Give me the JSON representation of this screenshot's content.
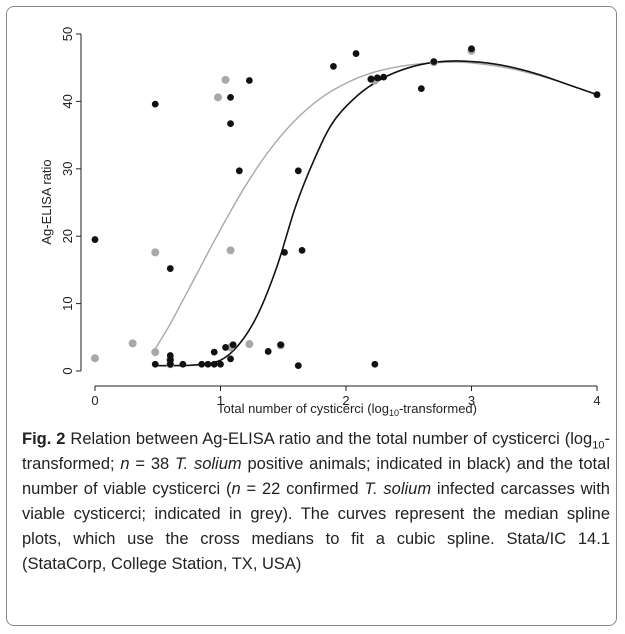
{
  "chart_data": {
    "type": "scatter",
    "xlabel_parts": [
      "Total number of cysticerci (log",
      "10",
      "-transformed)"
    ],
    "ylabel": "Ag-ELISA ratio",
    "xlim": [
      0,
      4
    ],
    "ylim": [
      0,
      50
    ],
    "x_ticks": [
      0,
      1,
      2,
      3,
      4
    ],
    "y_ticks": [
      0,
      10,
      20,
      30,
      40,
      50
    ],
    "grid": false,
    "series": [
      {
        "color": "#111111",
        "points": [
          [
            0.0,
            19.5
          ],
          [
            0.48,
            39.6
          ],
          [
            0.48,
            1.0
          ],
          [
            0.6,
            15.2
          ],
          [
            0.6,
            2.3
          ],
          [
            0.6,
            1.6
          ],
          [
            0.6,
            1.0
          ],
          [
            0.7,
            1.0
          ],
          [
            0.85,
            1.0
          ],
          [
            0.9,
            1.0
          ],
          [
            0.95,
            2.8
          ],
          [
            0.95,
            1.0
          ],
          [
            1.0,
            1.0
          ],
          [
            1.04,
            3.5
          ],
          [
            1.08,
            40.6
          ],
          [
            1.08,
            36.7
          ],
          [
            1.08,
            1.8
          ],
          [
            1.1,
            3.9
          ],
          [
            1.15,
            29.7
          ],
          [
            1.23,
            43.1
          ],
          [
            1.38,
            2.9
          ],
          [
            1.48,
            3.9
          ],
          [
            1.51,
            17.6
          ],
          [
            1.62,
            29.7
          ],
          [
            1.62,
            0.8
          ],
          [
            1.65,
            17.9
          ],
          [
            1.9,
            45.2
          ],
          [
            2.08,
            47.1
          ],
          [
            2.2,
            43.3
          ],
          [
            2.23,
            1.0
          ],
          [
            2.25,
            43.5
          ],
          [
            2.3,
            43.6
          ],
          [
            2.6,
            41.9
          ],
          [
            2.7,
            45.9
          ],
          [
            3.0,
            47.8
          ],
          [
            4.0,
            41.0
          ]
        ],
        "curve": [
          [
            0.48,
            0.8
          ],
          [
            0.6,
            0.8
          ],
          [
            0.8,
            0.9
          ],
          [
            1.0,
            1.6
          ],
          [
            1.15,
            4.0
          ],
          [
            1.3,
            8.5
          ],
          [
            1.45,
            15.5
          ],
          [
            1.6,
            24.5
          ],
          [
            1.75,
            31.5
          ],
          [
            1.9,
            37.0
          ],
          [
            2.1,
            41.0
          ],
          [
            2.3,
            43.5
          ],
          [
            2.5,
            45.0
          ],
          [
            2.7,
            45.8
          ],
          [
            2.9,
            46.0
          ],
          [
            3.2,
            45.5
          ],
          [
            3.5,
            44.2
          ],
          [
            3.8,
            42.3
          ],
          [
            4.0,
            41.0
          ]
        ]
      },
      {
        "color": "#a8a8a8",
        "points": [
          [
            0.0,
            1.9
          ],
          [
            0.3,
            4.1
          ],
          [
            0.48,
            17.6
          ],
          [
            0.48,
            2.8
          ],
          [
            0.6,
            1.7
          ],
          [
            0.6,
            1.0
          ],
          [
            0.98,
            40.6
          ],
          [
            1.04,
            43.2
          ],
          [
            1.08,
            17.9
          ],
          [
            1.08,
            3.5
          ],
          [
            1.23,
            4.0
          ],
          [
            1.48,
            3.8
          ],
          [
            2.2,
            43.3
          ],
          [
            2.23,
            43.1
          ],
          [
            2.7,
            45.8
          ],
          [
            3.0,
            47.5
          ]
        ],
        "curve": [
          [
            0.48,
            3.3
          ],
          [
            0.6,
            7.0
          ],
          [
            0.8,
            14.0
          ],
          [
            1.0,
            21.0
          ],
          [
            1.2,
            27.5
          ],
          [
            1.4,
            33.0
          ],
          [
            1.6,
            37.3
          ],
          [
            1.8,
            40.5
          ],
          [
            2.0,
            42.7
          ],
          [
            2.2,
            44.2
          ],
          [
            2.4,
            45.1
          ],
          [
            2.6,
            45.6
          ],
          [
            2.8,
            45.8
          ],
          [
            3.0,
            45.7
          ],
          [
            3.3,
            44.9
          ],
          [
            3.6,
            43.5
          ],
          [
            3.8,
            42.3
          ],
          [
            4.0,
            41.0
          ]
        ]
      }
    ]
  },
  "caption": {
    "label": "Fig. 2",
    "t1": " Relation between Ag-ELISA ratio and the total number of cysticerci (log",
    "sub": "10",
    "t2": "-transformed; ",
    "n1": "n",
    "t3": " = 38 ",
    "sp1": "T. solium",
    "t4": " positive animals; indicated in black) and the total number of viable cysticerci (",
    "n2": "n",
    "t5": " = 22 confirmed ",
    "sp2": "T. solium",
    "t6": " infected carcasses with viable cysticerci; indicated in grey). The curves represent the median spline plots, which use the cross medians to fit a cubic spline. Stata/IC 14.1 (StataCorp, College Station, TX, USA)"
  }
}
